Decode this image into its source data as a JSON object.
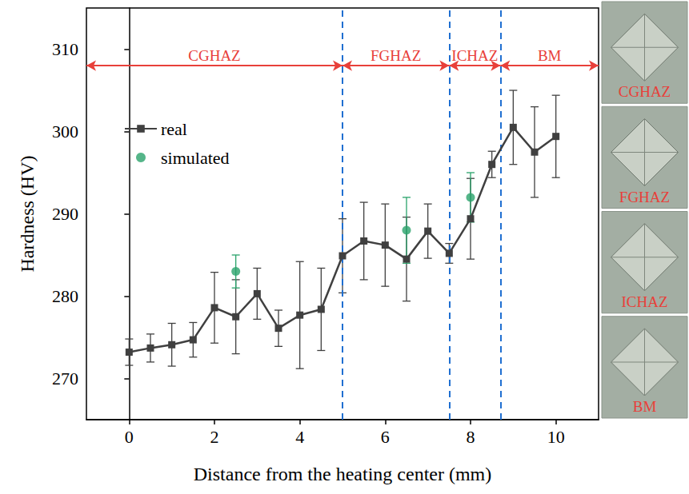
{
  "chart_data": {
    "type": "line",
    "x_label": "Distance from the heating center (mm)",
    "y_label": "Hardness (HV)",
    "xlim": [
      -1,
      11
    ],
    "xticks": [
      0,
      2,
      4,
      6,
      8,
      10
    ],
    "ylim": [
      265,
      315
    ],
    "yticks": [
      270,
      280,
      290,
      300,
      310
    ],
    "grid": false,
    "legend": "upper left",
    "series": [
      {
        "name": "real",
        "type": "line",
        "color": "#404040",
        "marker": "square",
        "line_style": "solid",
        "x": [
          0,
          0.5,
          1,
          1.5,
          2,
          2.5,
          3,
          3.5,
          4,
          4.5,
          5,
          5.5,
          6,
          6.5,
          7,
          7.5,
          8,
          8.5,
          9,
          9.5,
          10
        ],
        "values": [
          273.2,
          273.7,
          274.1,
          274.7,
          278.6,
          277.5,
          280.3,
          276.1,
          277.7,
          278.4,
          284.9,
          286.7,
          286.2,
          284.5,
          287.9,
          285.2,
          289.4,
          296.0,
          300.5,
          297.5,
          299.4
        ],
        "errors": [
          1.6,
          1.7,
          2.6,
          2.1,
          4.3,
          4.5,
          3.1,
          2.2,
          6.5,
          5.0,
          4.5,
          4.7,
          5.0,
          5.1,
          3.3,
          1.2,
          4.9,
          1.6,
          4.5,
          5.5,
          5.0
        ]
      },
      {
        "name": "simulated",
        "type": "scatter",
        "color": "#2aa36b",
        "marker": "circle",
        "x": [
          2.5,
          6.5,
          8
        ],
        "values": [
          283,
          288,
          292
        ],
        "errors": [
          2,
          4,
          3
        ]
      }
    ],
    "regions": [
      {
        "label": "CGHAZ",
        "start": -1,
        "end": 5
      },
      {
        "label": "FGHAZ",
        "start": 5,
        "end": 7.5
      },
      {
        "label": "ICHAZ",
        "start": 7.5,
        "end": 8.7
      },
      {
        "label": "BM",
        "start": 8.7,
        "end": 11
      }
    ],
    "region_arrow_at": 308,
    "region_color": "#e8403a",
    "micrograph_labels": [
      "CGHAZ",
      "FGHAZ",
      "ICHAZ",
      "BM"
    ]
  }
}
